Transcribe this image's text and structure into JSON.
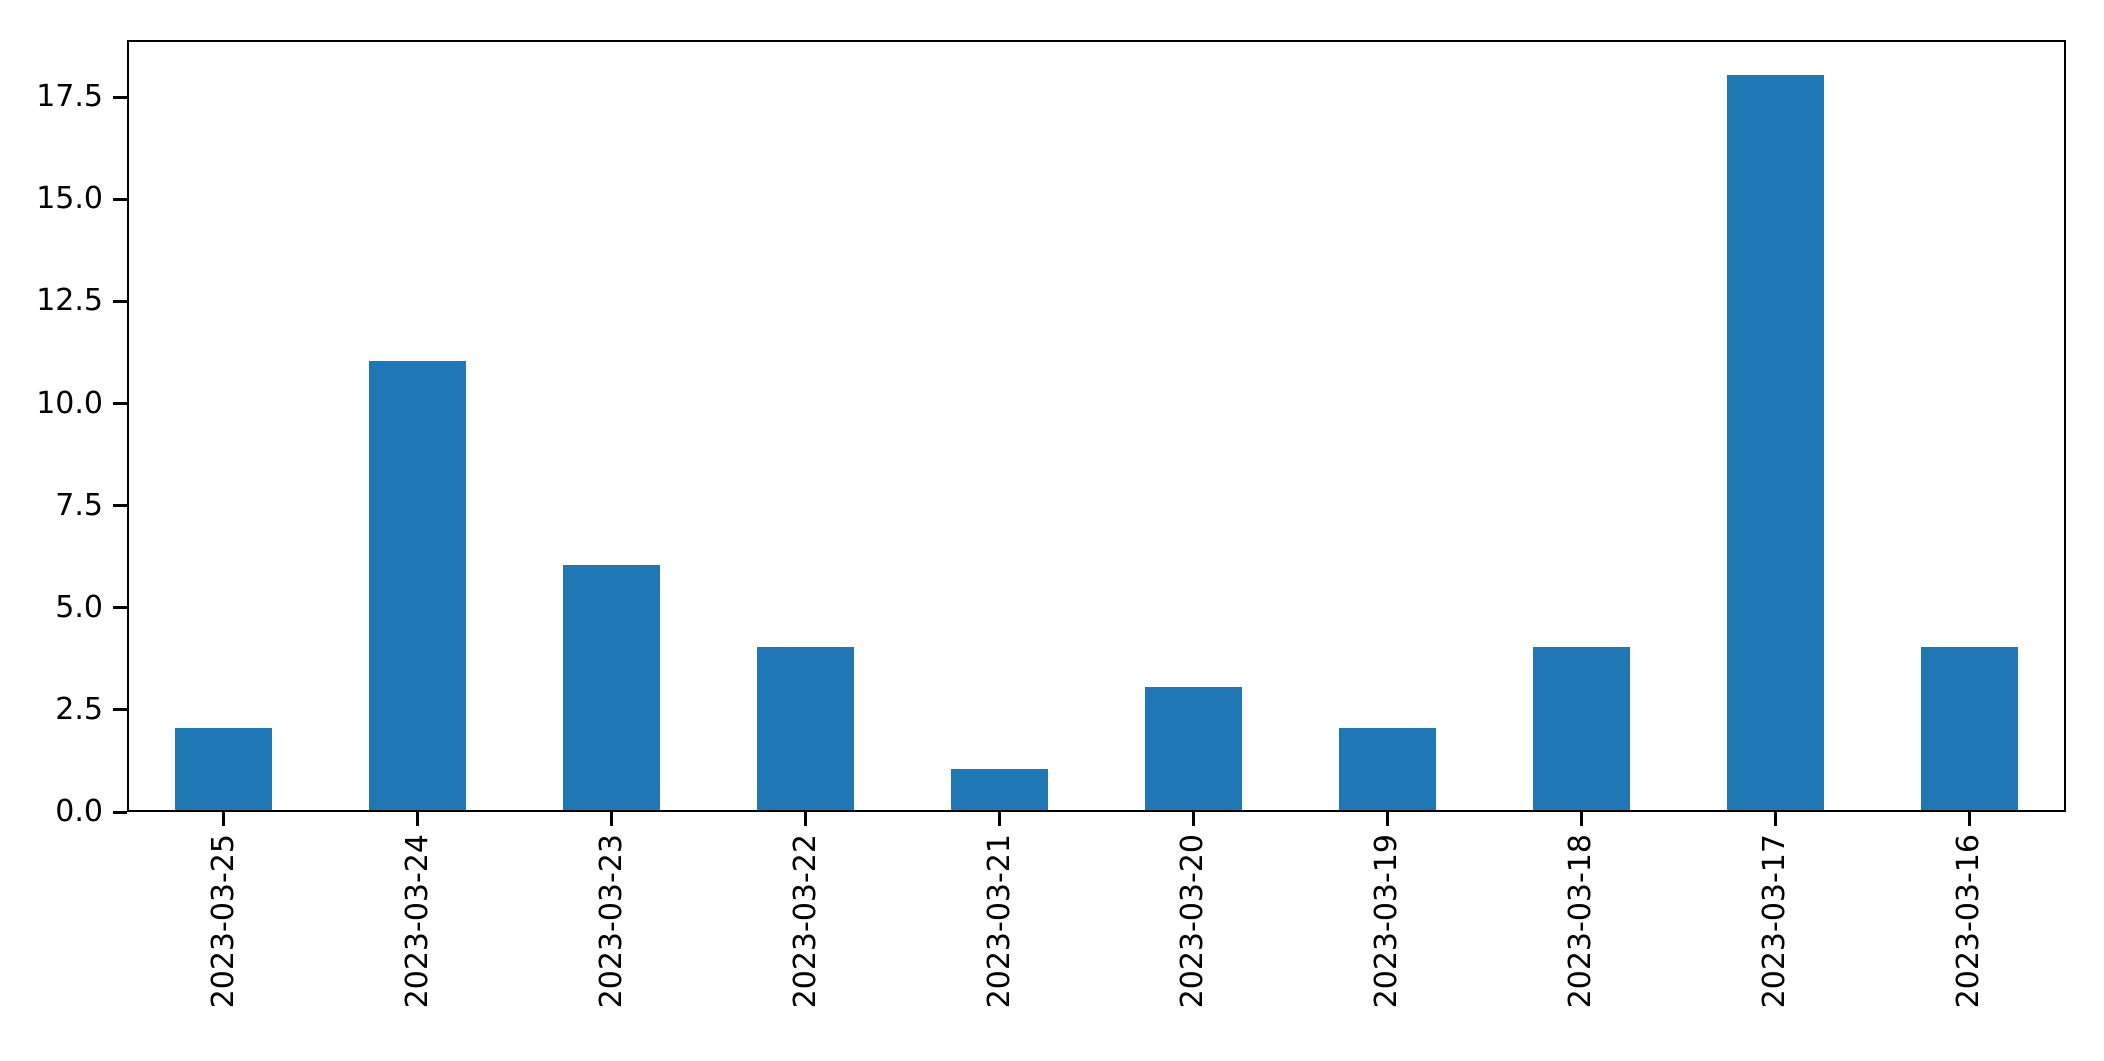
{
  "chart_data": {
    "type": "bar",
    "title": "",
    "xlabel": "",
    "ylabel": "",
    "categories": [
      "2023-03-25",
      "2023-03-24",
      "2023-03-23",
      "2023-03-22",
      "2023-03-21",
      "2023-03-20",
      "2023-03-19",
      "2023-03-18",
      "2023-03-17",
      "2023-03-16"
    ],
    "values": [
      2,
      11,
      6,
      4,
      1,
      3,
      2,
      4,
      18,
      4
    ],
    "ylim": [
      0,
      18.9
    ],
    "yticks": [
      0,
      2.5,
      5,
      7.5,
      10,
      12.5,
      15,
      17.5
    ],
    "ytick_labels": [
      "0.0",
      "2.5",
      "5.0",
      "7.5",
      "10.0",
      "12.5",
      "15.0",
      "17.5"
    ],
    "bar_color": "#1f77b4",
    "grid": false,
    "legend": null,
    "x_tick_rotation": 90,
    "bar_width_fraction": 0.5
  }
}
